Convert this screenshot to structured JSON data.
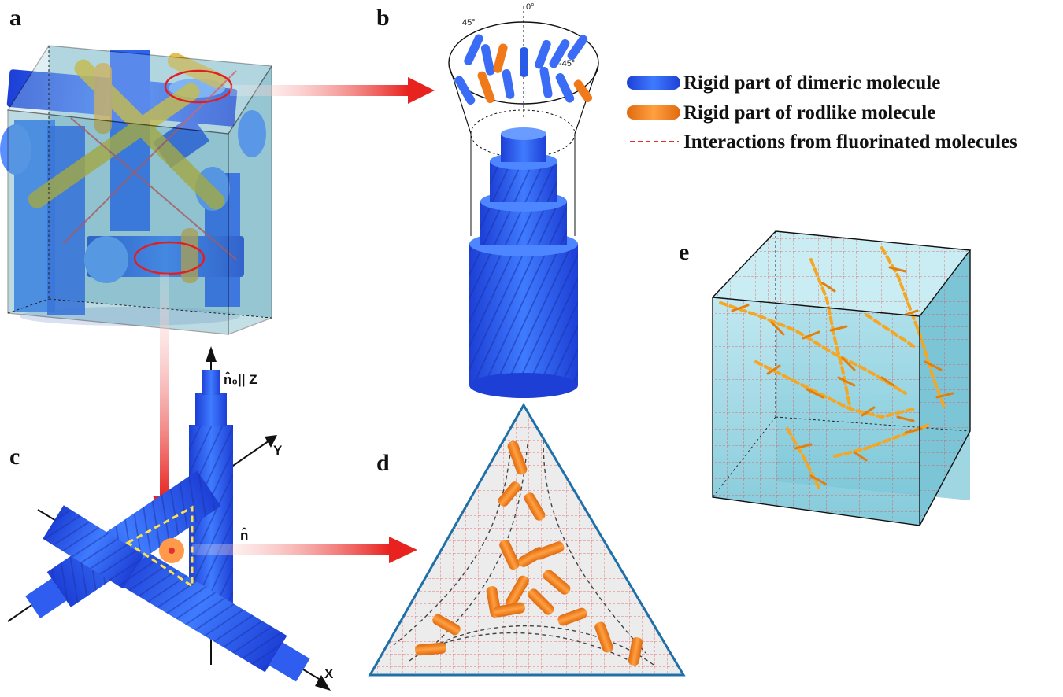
{
  "panels": {
    "a": "a",
    "b": "b",
    "c": "c",
    "d": "d",
    "e": "e"
  },
  "legend": {
    "dimeric": "Rigid part of dimeric molecule",
    "rodlike": "Rigid part of rodlike molecule",
    "interactions": "Interactions from fluorinated molecules"
  },
  "angles": {
    "plus45": "45°",
    "zero": "0°",
    "minus45": "-45°"
  },
  "axes": {
    "n0": "n̂₀|| Z",
    "n": "n̂",
    "y": "Y",
    "x": "X"
  },
  "colors": {
    "dimeric_blue": "#2f5df0",
    "rodlike_orange": "#f08a28",
    "interaction_red": "#e03030",
    "arrow_red": "#e8231f",
    "cube_teal": "#4e9fb3",
    "cube_e": "#8fd0dd",
    "rod_yellow": "#f5a623"
  }
}
